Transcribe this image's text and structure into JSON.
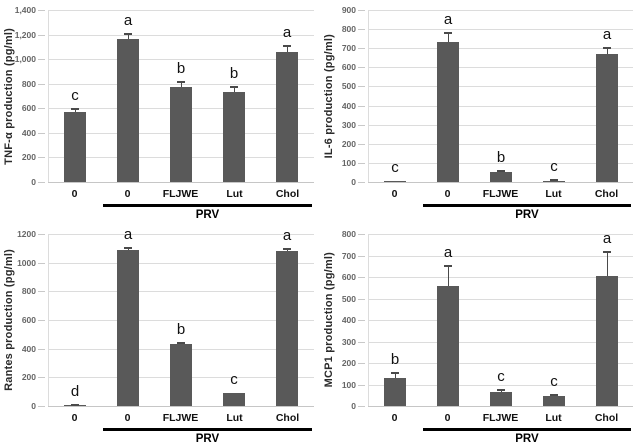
{
  "figure": {
    "background": "#ffffff",
    "bar_color": "#595959",
    "gridline_color": "#dcdcdc",
    "tick_mark_color": "#c9c9c9",
    "tick_label_color": "#666666",
    "error_bar_color": "#4a4a4a",
    "group_line_color": "#000000",
    "label_color": "#1a1a1a"
  },
  "chart_data": [
    {
      "type": "bar",
      "title": "",
      "xlabel": "",
      "ylabel": "TNF-α production (pg/ml)",
      "categories": [
        "0",
        "0",
        "FLJWE",
        "Lut",
        "Chol"
      ],
      "values": [
        570,
        1160,
        770,
        735,
        1060
      ],
      "errors": [
        28,
        45,
        40,
        38,
        45
      ],
      "sig_letters": [
        "c",
        "a",
        "b",
        "b",
        "a"
      ],
      "ylim": [
        0,
        1400
      ],
      "ytick_step": 200,
      "ytick_labels": [
        "0",
        "200",
        "400",
        "600",
        "800",
        "1,000",
        "1,200",
        "1,400"
      ],
      "grid": true,
      "legend": "none",
      "group_label": "PRV",
      "group_start_category": 1
    },
    {
      "type": "bar",
      "title": "",
      "xlabel": "",
      "ylabel": "IL-6 production (pg/ml)",
      "categories": [
        "0",
        "0",
        "FLJWE",
        "Lut",
        "Chol"
      ],
      "values": [
        2,
        735,
        50,
        7,
        670
      ],
      "errors": [
        0,
        45,
        6,
        4,
        32
      ],
      "sig_letters": [
        "c",
        "a",
        "b",
        "c",
        "a"
      ],
      "ylim": [
        0,
        900
      ],
      "ytick_step": 100,
      "ytick_labels": [
        "0",
        "100",
        "200",
        "300",
        "400",
        "500",
        "600",
        "700",
        "800",
        "900"
      ],
      "grid": true,
      "legend": "none",
      "group_label": "PRV",
      "group_start_category": 1
    },
    {
      "type": "bar",
      "title": "",
      "xlabel": "",
      "ylabel": "Rantes production (pg/ml)",
      "categories": [
        "0",
        "0",
        "FLJWE",
        "Lut",
        "Chol"
      ],
      "values": [
        4,
        1090,
        430,
        90,
        1080
      ],
      "errors": [
        3,
        15,
        12,
        0,
        15
      ],
      "sig_letters": [
        "d",
        "a",
        "b",
        "c",
        "a"
      ],
      "ylim": [
        0,
        1200
      ],
      "ytick_step": 200,
      "ytick_labels": [
        "0",
        "200",
        "400",
        "600",
        "800",
        "1000",
        "1200"
      ],
      "grid": true,
      "legend": "none",
      "group_label": "PRV",
      "group_start_category": 1
    },
    {
      "type": "bar",
      "title": "",
      "xlabel": "",
      "ylabel": "MCP1 production (pg/ml)",
      "categories": [
        "0",
        "0",
        "FLJWE",
        "Lut",
        "Chol"
      ],
      "values": [
        130,
        560,
        63,
        45,
        605
      ],
      "errors": [
        22,
        90,
        12,
        8,
        110
      ],
      "sig_letters": [
        "b",
        "a",
        "c",
        "c",
        "a"
      ],
      "ylim": [
        0,
        800
      ],
      "ytick_step": 100,
      "ytick_labels": [
        "0",
        "100",
        "200",
        "300",
        "400",
        "500",
        "600",
        "700",
        "800"
      ],
      "grid": true,
      "legend": "none",
      "group_label": "PRV",
      "group_start_category": 1
    }
  ]
}
